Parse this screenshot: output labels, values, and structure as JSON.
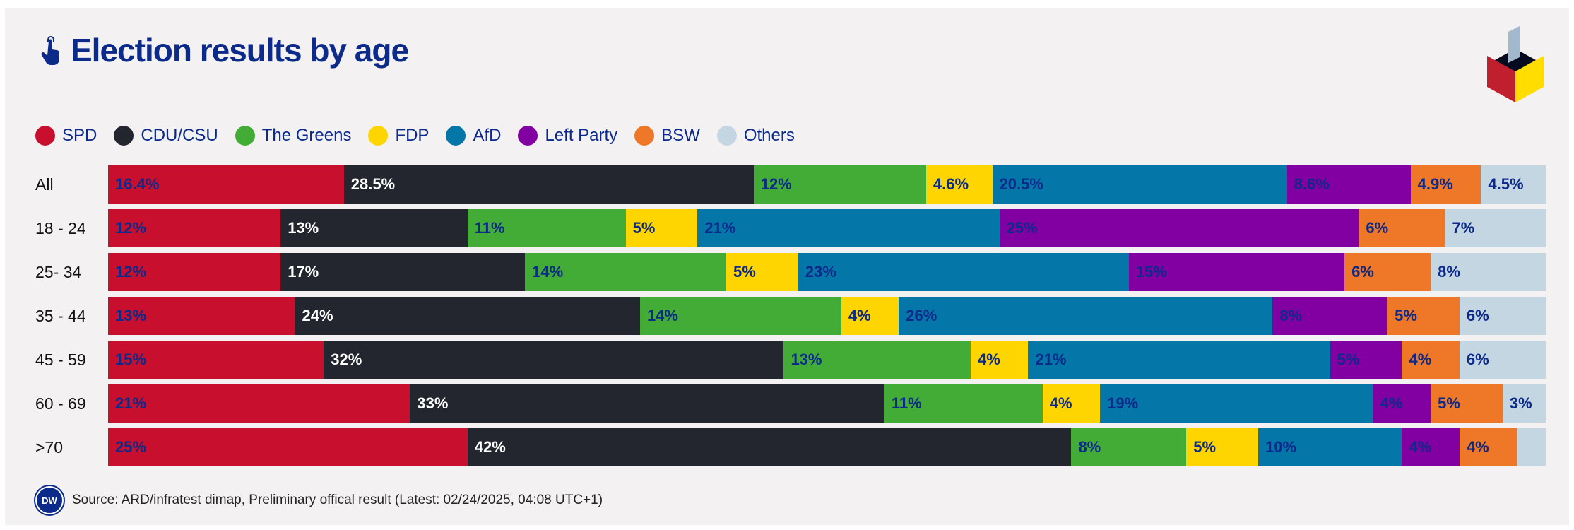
{
  "title": "Election results by age",
  "chart_data": {
    "type": "bar",
    "stacked": true,
    "orientation": "horizontal",
    "title": "Election results by age",
    "unit": "%",
    "categories": [
      "All",
      "18 - 24",
      "25- 34",
      "35 - 44",
      "45 - 59",
      "60 - 69",
      ">70"
    ],
    "series": [
      {
        "name": "SPD",
        "color": "#c8102e",
        "label_color": "#0b2a8a",
        "values": [
          16.4,
          12,
          12,
          13,
          15,
          21,
          25
        ],
        "labels": [
          "16.4%",
          "12%",
          "12%",
          "13%",
          "15%",
          "21%",
          "25%"
        ]
      },
      {
        "name": "CDU/CSU",
        "color": "#23262f",
        "label_color": "#ffffff",
        "values": [
          28.5,
          13,
          17,
          24,
          32,
          33,
          42
        ],
        "labels": [
          "28.5%",
          "13%",
          "17%",
          "24%",
          "32%",
          "33%",
          "42%"
        ]
      },
      {
        "name": "The Greens",
        "color": "#43ac37",
        "label_color": "#0b2a8a",
        "values": [
          12,
          11,
          14,
          14,
          13,
          11,
          8
        ],
        "labels": [
          "12%",
          "11%",
          "14%",
          "14%",
          "13%",
          "11%",
          "8%"
        ]
      },
      {
        "name": "FDP",
        "color": "#ffd500",
        "label_color": "#0b2a8a",
        "values": [
          4.6,
          5,
          5,
          4,
          4,
          4,
          5
        ],
        "labels": [
          "4.6%",
          "5%",
          "5%",
          "4%",
          "4%",
          "4%",
          "5%"
        ]
      },
      {
        "name": "AfD",
        "color": "#0476a8",
        "label_color": "#0b2a8a",
        "values": [
          20.5,
          21,
          23,
          26,
          21,
          19,
          10
        ],
        "labels": [
          "20.5%",
          "21%",
          "23%",
          "26%",
          "21%",
          "19%",
          "10%"
        ]
      },
      {
        "name": "Left Party",
        "color": "#8200a2",
        "label_color": "#0b2a8a",
        "values": [
          8.6,
          25,
          15,
          8,
          5,
          4,
          4
        ],
        "labels": [
          "8.6%",
          "25%",
          "15%",
          "8%",
          "5%",
          "4%",
          "4%"
        ]
      },
      {
        "name": "BSW",
        "color": "#ee7728",
        "label_color": "#0b2a8a",
        "values": [
          4.9,
          6,
          6,
          5,
          4,
          5,
          4
        ],
        "labels": [
          "4.9%",
          "6%",
          "6%",
          "5%",
          "4%",
          "5%",
          "4%"
        ]
      },
      {
        "name": "Others",
        "color": "#c5d6e3",
        "label_color": "#0b2a8a",
        "values": [
          4.5,
          7,
          8,
          6,
          6,
          3,
          2
        ],
        "labels": [
          "4.5%",
          "7%",
          "8%",
          "6%",
          "6%",
          "3%",
          ""
        ]
      }
    ],
    "xlim": [
      0,
      100
    ],
    "legend": "top-left"
  },
  "footer": {
    "logo_text": "DW",
    "source": "Source: ARD/infratest dimap, Preliminary offical result (Latest: 02/24/2025, 04:08 UTC+1)"
  }
}
